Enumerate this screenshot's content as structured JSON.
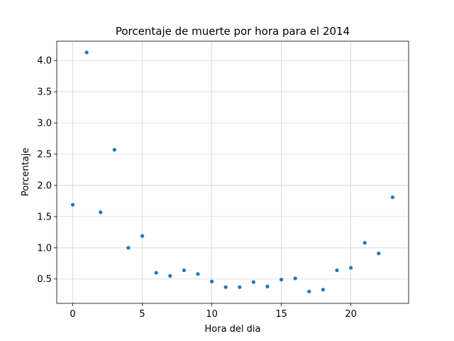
{
  "chart_data": {
    "type": "scatter",
    "title": "Porcentaje de muerte por hora para el 2014",
    "xlabel": "Hora del dia",
    "ylabel": "Porcentaje",
    "xlim": [
      -1.15,
      24.15
    ],
    "ylim": [
      0.11,
      4.31
    ],
    "xticks": [
      0,
      5,
      10,
      15,
      20
    ],
    "yticks": [
      0.5,
      1.0,
      1.5,
      2.0,
      2.5,
      3.0,
      3.5,
      4.0
    ],
    "ytick_labels": [
      "0.5",
      "1.0",
      "1.5",
      "2.0",
      "2.5",
      "3.0",
      "3.5",
      "4.0"
    ],
    "grid": true,
    "color": "#1f77b4",
    "x": [
      0,
      1,
      2,
      3,
      4,
      5,
      6,
      7,
      8,
      9,
      10,
      11,
      12,
      13,
      14,
      15,
      16,
      17,
      18,
      19,
      20,
      21,
      22,
      23
    ],
    "y": [
      1.69,
      4.13,
      1.57,
      2.57,
      1.0,
      1.19,
      0.6,
      0.55,
      0.64,
      0.58,
      0.46,
      0.37,
      0.37,
      0.45,
      0.38,
      0.49,
      0.51,
      0.3,
      0.33,
      0.64,
      0.68,
      1.08,
      0.91,
      1.81
    ]
  }
}
